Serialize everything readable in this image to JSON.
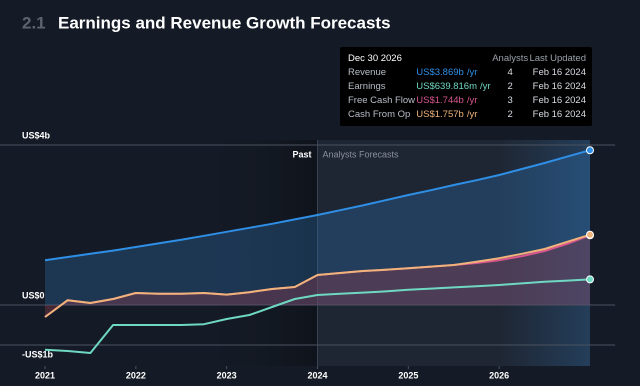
{
  "section": "2.1",
  "chart_data": {
    "type": "line",
    "title": "Earnings and Revenue Growth Forecasts",
    "past_label": "Past",
    "forecast_label": "Analysts Forecasts",
    "forecast_start": 2024,
    "x": [
      2021,
      2021.25,
      2021.5,
      2021.75,
      2022,
      2022.25,
      2022.5,
      2022.75,
      2023,
      2023.25,
      2023.5,
      2023.75,
      2024,
      2024.25,
      2024.5,
      2024.75,
      2025,
      2025.25,
      2025.5,
      2025.75,
      2026,
      2026.25,
      2026.5,
      2026.75,
      2027
    ],
    "xlim": [
      2021,
      2027
    ],
    "xticks": [
      2021,
      2022,
      2023,
      2024,
      2025,
      2026
    ],
    "ylim": [
      -1.5,
      4.25
    ],
    "yticks": [
      {
        "value": 4,
        "label": "US$4b"
      },
      {
        "value": 0,
        "label": "US$0"
      },
      {
        "value": -1,
        "label": "-US$1b"
      }
    ],
    "grid": true,
    "series": [
      {
        "name": "Revenue",
        "color": "#2f8fe6",
        "area": true,
        "values": [
          1.12,
          1.2,
          1.28,
          1.36,
          1.45,
          1.54,
          1.63,
          1.73,
          1.83,
          1.93,
          2.03,
          2.14,
          2.25,
          2.37,
          2.49,
          2.62,
          2.75,
          2.87,
          3.0,
          3.12,
          3.25,
          3.4,
          3.55,
          3.71,
          3.869
        ]
      },
      {
        "name": "Earnings",
        "color": "#6fd8c2",
        "area": false,
        "values": [
          -1.12,
          -1.15,
          -1.2,
          -0.5,
          -0.5,
          -0.5,
          -0.5,
          -0.48,
          -0.35,
          -0.25,
          -0.05,
          0.15,
          0.25,
          0.28,
          0.31,
          0.34,
          0.38,
          0.41,
          0.44,
          0.47,
          0.5,
          0.54,
          0.58,
          0.61,
          0.64
        ]
      },
      {
        "name": "Free Cash Flow",
        "color": "#d9578e",
        "area": false,
        "values": [
          -0.3,
          0.12,
          0.05,
          0.15,
          0.3,
          0.28,
          0.28,
          0.3,
          0.26,
          0.32,
          0.4,
          0.45,
          0.75,
          0.8,
          0.85,
          0.88,
          0.92,
          0.96,
          1.0,
          1.05,
          1.12,
          1.22,
          1.35,
          1.53,
          1.744
        ]
      },
      {
        "name": "Cash From Op",
        "color": "#f0b37a",
        "area": true,
        "values": [
          -0.3,
          0.12,
          0.05,
          0.15,
          0.3,
          0.28,
          0.28,
          0.3,
          0.26,
          0.32,
          0.4,
          0.45,
          0.75,
          0.8,
          0.85,
          0.88,
          0.92,
          0.96,
          1.0,
          1.08,
          1.17,
          1.28,
          1.4,
          1.58,
          1.757
        ]
      }
    ],
    "tooltip": {
      "date": "Dec 30 2026",
      "headers": [
        "Analysts",
        "Last Updated"
      ],
      "rows": [
        {
          "value": "US$3.869b",
          "unit": "/yr",
          "analysts": 4,
          "updated": "Feb 16 2024"
        },
        {
          "value": "US$639.816m",
          "unit": "/yr",
          "analysts": 2,
          "updated": "Feb 16 2024"
        },
        {
          "value": "US$1.744b",
          "unit": "/yr",
          "analysts": 3,
          "updated": "Feb 16 2024"
        },
        {
          "value": "US$1.757b",
          "unit": "/yr",
          "analysts": 2,
          "updated": "Feb 16 2024"
        }
      ]
    }
  }
}
